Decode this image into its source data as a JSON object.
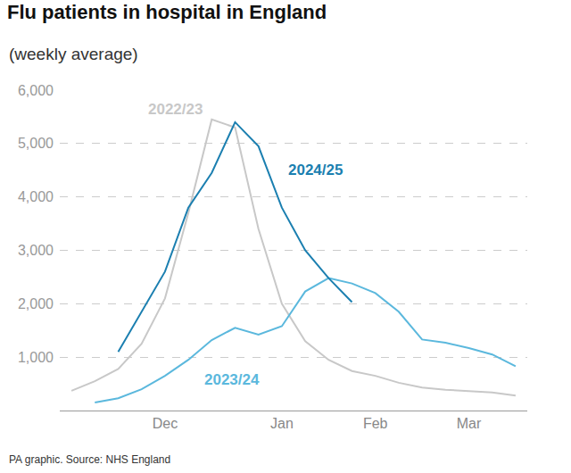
{
  "chart_data": {
    "type": "line",
    "title": "Flu patients in hospital in England",
    "subtitle": "(weekly average)",
    "source": "PA graphic. Source: NHS England",
    "categories": [
      null,
      null,
      null,
      null,
      "Dec",
      null,
      null,
      null,
      null,
      "Jan",
      null,
      null,
      null,
      "Feb",
      null,
      null,
      null,
      "Mar",
      null,
      null
    ],
    "series": [
      {
        "name": "2022/23",
        "color": "#c8c8c8",
        "values": [
          370,
          550,
          780,
          1250,
          2100,
          3700,
          5450,
          5300,
          3400,
          2000,
          1300,
          950,
          740,
          650,
          520,
          430,
          390,
          370,
          340,
          280
        ]
      },
      {
        "name": "2023/24",
        "color": "#5bb8dd",
        "values": [
          null,
          150,
          230,
          400,
          650,
          950,
          1320,
          1550,
          1420,
          1580,
          2230,
          2480,
          2380,
          2200,
          1850,
          1330,
          1270,
          1170,
          1050,
          830
        ]
      },
      {
        "name": "2024/25",
        "color": "#1b7fb0",
        "values": [
          null,
          null,
          1100,
          1850,
          2600,
          3800,
          4450,
          5400,
          4950,
          3800,
          3000,
          2480,
          2030,
          null,
          null,
          null,
          null,
          null,
          null,
          null
        ]
      }
    ],
    "ylim": [
      0,
      6000
    ],
    "yticks": [
      {
        "value": 1000,
        "label": "1,000"
      },
      {
        "value": 2000,
        "label": "2,000"
      },
      {
        "value": 3000,
        "label": "3,000"
      },
      {
        "value": 4000,
        "label": "4,000"
      },
      {
        "value": 5000,
        "label": "5,000"
      },
      {
        "value": 6000,
        "label": "6,000"
      }
    ],
    "grid": true
  }
}
